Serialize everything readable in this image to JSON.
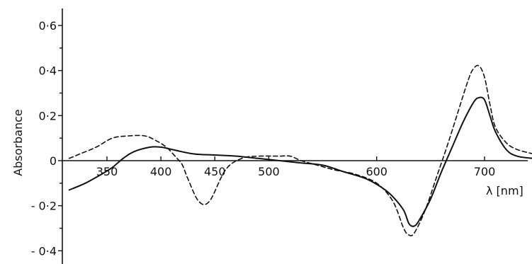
{
  "chart_data": {
    "type": "line",
    "title": "",
    "xlabel": "λ [nm]",
    "ylabel": "Absorbance",
    "xlim": [
      315,
      745
    ],
    "ylim": [
      -0.44,
      0.66
    ],
    "x_ticks": [
      {
        "value": 350,
        "label": "350"
      },
      {
        "value": 400,
        "label": "400"
      },
      {
        "value": 450,
        "label": "450"
      },
      {
        "value": 500,
        "label": "500"
      },
      {
        "value": 600,
        "label": "600"
      },
      {
        "value": 700,
        "label": "700"
      }
    ],
    "y_ticks": [
      {
        "value": 0.6,
        "label": "0·6"
      },
      {
        "value": 0.4,
        "label": "0·4"
      },
      {
        "value": 0.2,
        "label": "0·2"
      },
      {
        "value": 0,
        "label": "0"
      },
      {
        "value": -0.2,
        "label": "- 0·2"
      },
      {
        "value": -0.4,
        "label": "- 0·4"
      }
    ],
    "y_minor_ticks": [
      0.5,
      0.3,
      0.1,
      -0.1,
      -0.3
    ],
    "grid": false,
    "series": [
      {
        "style": "solid",
        "color": "#111111",
        "x": [
          315,
          330,
          345,
          355,
          365,
          375,
          390,
          400,
          410,
          430,
          450,
          470,
          490,
          510,
          530,
          550,
          570,
          590,
          605,
          615,
          625,
          630,
          635,
          640,
          650,
          660,
          670,
          680,
          690,
          695,
          700,
          705,
          710,
          720,
          730,
          745
        ],
        "y": [
          -0.13,
          -0.1,
          -0.06,
          -0.03,
          0.01,
          0.04,
          0.06,
          0.06,
          0.05,
          0.03,
          0.025,
          0.02,
          0.01,
          0.0,
          -0.01,
          -0.02,
          -0.05,
          -0.08,
          -0.12,
          -0.16,
          -0.22,
          -0.28,
          -0.29,
          -0.26,
          -0.17,
          -0.05,
          0.06,
          0.17,
          0.26,
          0.28,
          0.27,
          0.2,
          0.13,
          0.05,
          0.02,
          0.01
        ]
      },
      {
        "style": "dashed",
        "color": "#111111",
        "x": [
          315,
          325,
          340,
          355,
          370,
          385,
          395,
          405,
          415,
          420,
          425,
          435,
          445,
          460,
          475,
          490,
          510,
          520,
          530,
          545,
          560,
          580,
          600,
          615,
          625,
          630,
          635,
          645,
          655,
          665,
          675,
          685,
          690,
          695,
          700,
          705,
          710,
          720,
          730,
          745
        ],
        "y": [
          0.01,
          0.03,
          0.06,
          0.1,
          0.11,
          0.11,
          0.09,
          0.06,
          0.01,
          -0.02,
          -0.08,
          -0.18,
          -0.18,
          -0.04,
          0.01,
          0.02,
          0.02,
          0.02,
          0.0,
          -0.02,
          -0.04,
          -0.06,
          -0.1,
          -0.18,
          -0.3,
          -0.33,
          -0.32,
          -0.22,
          -0.08,
          0.06,
          0.21,
          0.36,
          0.41,
          0.42,
          0.37,
          0.25,
          0.15,
          0.08,
          0.05,
          0.03
        ]
      }
    ]
  }
}
